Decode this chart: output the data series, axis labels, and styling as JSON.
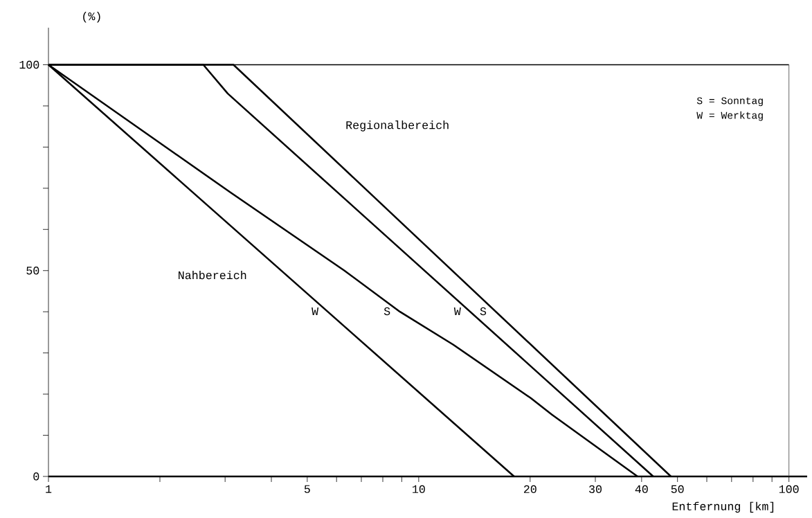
{
  "chart_data": {
    "type": "line",
    "xlabel": "Entfernung [km]",
    "ylabel": "(%)",
    "log": "x",
    "grid": false,
    "marker": "none",
    "line_style": "solid",
    "xlim": [
      1,
      112
    ],
    "ylim": [
      0,
      109
    ],
    "xticks": [
      1,
      {
        "value": 2,
        "label": null
      },
      {
        "value": 3,
        "label": null
      },
      {
        "value": 4,
        "label": null
      },
      5,
      {
        "value": 6,
        "label": null
      },
      {
        "value": 7,
        "label": null
      },
      {
        "value": 8,
        "label": null
      },
      {
        "value": 9,
        "label": null
      },
      10,
      20,
      30,
      40,
      50,
      {
        "value": 60,
        "label": null
      },
      {
        "value": 70,
        "label": null
      },
      {
        "value": 80,
        "label": null
      },
      {
        "value": 90,
        "label": null
      },
      100
    ],
    "yticks": [
      0,
      {
        "value": 10,
        "label": null
      },
      {
        "value": 20,
        "label": null
      },
      {
        "value": 30,
        "label": null
      },
      {
        "value": 40,
        "label": null
      },
      50,
      {
        "value": 60,
        "label": null
      },
      {
        "value": 70,
        "label": null
      },
      {
        "value": 80,
        "label": null
      },
      {
        "value": 90,
        "label": null
      },
      100
    ],
    "ref_lines": [
      {
        "axis": "y",
        "value": 100,
        "color": "#000000"
      },
      {
        "axis": "x",
        "value": 100,
        "color": "#404040"
      }
    ],
    "series": [
      {
        "name": "W",
        "color": "#000000",
        "x": [
          1,
          18.1
        ],
        "values": [
          100,
          0
        ]
      },
      {
        "name": "S",
        "color": "#000000",
        "x": [
          1,
          3.1,
          6.3,
          8.9,
          12.4,
          20.1,
          22.9,
          39
        ],
        "values": [
          100,
          69,
          50,
          40,
          32,
          19,
          15,
          0
        ]
      },
      {
        "name": "W",
        "color": "#000000",
        "x": [
          1,
          2.62,
          3.05,
          43
        ],
        "values": [
          100,
          100,
          93,
          0
        ]
      },
      {
        "name": "S",
        "color": "#000000",
        "x": [
          1,
          3.16,
          48
        ],
        "values": [
          100,
          100,
          0
        ]
      }
    ],
    "annotations": [
      "Nahbereich",
      "Regionalbereich",
      "S = Sonntag",
      "W = Werktag"
    ]
  }
}
